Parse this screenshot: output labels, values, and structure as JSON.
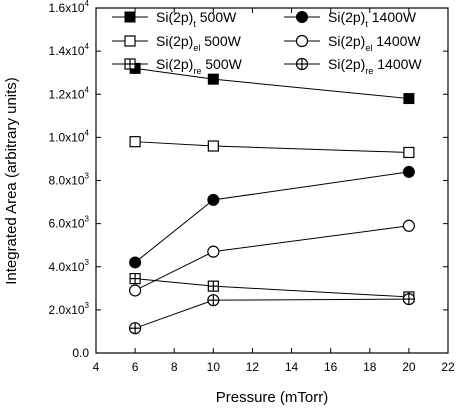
{
  "chart_data": {
    "type": "line",
    "xlabel": "Pressure (mTorr)",
    "ylabel": "Integrated Area (arbitrary units)",
    "xlim": [
      4,
      22
    ],
    "ylim": [
      0,
      16000
    ],
    "x_ticks": [
      4,
      6,
      8,
      10,
      12,
      14,
      16,
      18,
      20,
      22
    ],
    "x_tick_labels": [
      "4",
      "6",
      "8",
      "10",
      "12",
      "14",
      "16",
      "18",
      "20",
      "22"
    ],
    "y_ticks": [
      0,
      2000,
      4000,
      6000,
      8000,
      10000,
      12000,
      14000,
      16000
    ],
    "y_tick_labels": [
      {
        "mant": "0.0",
        "exp": ""
      },
      {
        "mant": "2.0x10",
        "exp": "3"
      },
      {
        "mant": "4.0x10",
        "exp": "3"
      },
      {
        "mant": "6.0x10",
        "exp": "3"
      },
      {
        "mant": "8.0x10",
        "exp": "3"
      },
      {
        "mant": "1.0x10",
        "exp": "4"
      },
      {
        "mant": "1.2x10",
        "exp": "4"
      },
      {
        "mant": "1.4x10",
        "exp": "4"
      },
      {
        "mant": "1.6x10",
        "exp": "4"
      }
    ],
    "grid": false,
    "legend_position": "top",
    "x": [
      6,
      10,
      20
    ],
    "series": [
      {
        "label_main": "Si(2p)",
        "label_sub": "t",
        "label_tail": " 500W",
        "marker": "filled-square",
        "values": [
          13200,
          12700,
          11800
        ]
      },
      {
        "label_main": "Si(2p)",
        "label_sub": "t",
        "label_tail": " 1400W",
        "marker": "filled-circle",
        "values": [
          4200,
          7100,
          8400
        ]
      },
      {
        "label_main": "Si(2p)",
        "label_sub": "el",
        "label_tail": " 500W",
        "marker": "open-square",
        "values": [
          9800,
          9600,
          9300
        ]
      },
      {
        "label_main": "Si(2p)",
        "label_sub": "el",
        "label_tail": " 1400W",
        "marker": "open-circle",
        "values": [
          2900,
          4700,
          5900
        ]
      },
      {
        "label_main": "Si(2p)",
        "label_sub": "re",
        "label_tail": " 500W",
        "marker": "crossed-square",
        "values": [
          3450,
          3100,
          2600
        ]
      },
      {
        "label_main": "Si(2p)",
        "label_sub": "re",
        "label_tail": " 1400W",
        "marker": "crossed-circle",
        "values": [
          1150,
          2450,
          2500
        ]
      }
    ]
  }
}
